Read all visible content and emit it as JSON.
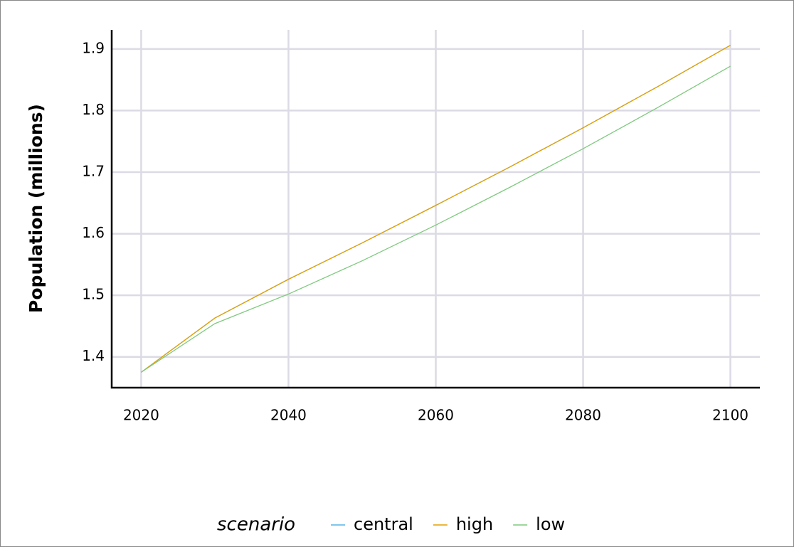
{
  "chart_data": {
    "type": "line",
    "x_label": "Population (millions)",
    "x": [
      2020,
      2030,
      2040,
      2050,
      2060,
      2070,
      2080,
      2090,
      2100
    ],
    "series": [
      {
        "name": "central",
        "color": "#56B4E9",
        "values": [
          1.375,
          1.463,
          1.526,
          1.585,
          1.646,
          1.708,
          1.772,
          1.838,
          1.906
        ]
      },
      {
        "name": "high",
        "color": "#E69F00",
        "values": [
          1.375,
          1.463,
          1.526,
          1.585,
          1.646,
          1.708,
          1.772,
          1.838,
          1.906
        ]
      },
      {
        "name": "low",
        "color": "#7FC97F",
        "values": [
          1.375,
          1.454,
          1.502,
          1.556,
          1.614,
          1.675,
          1.738,
          1.804,
          1.872
        ]
      }
    ],
    "legend_title": "scenario",
    "xlim": [
      2016,
      2104
    ],
    "xticks": [
      2020,
      2040,
      2060,
      2080,
      2100
    ],
    "ylim": [
      1.35,
      1.931
    ],
    "yticks": [
      1.4,
      1.5,
      1.6,
      1.7,
      1.8,
      1.9
    ],
    "grid": true
  }
}
